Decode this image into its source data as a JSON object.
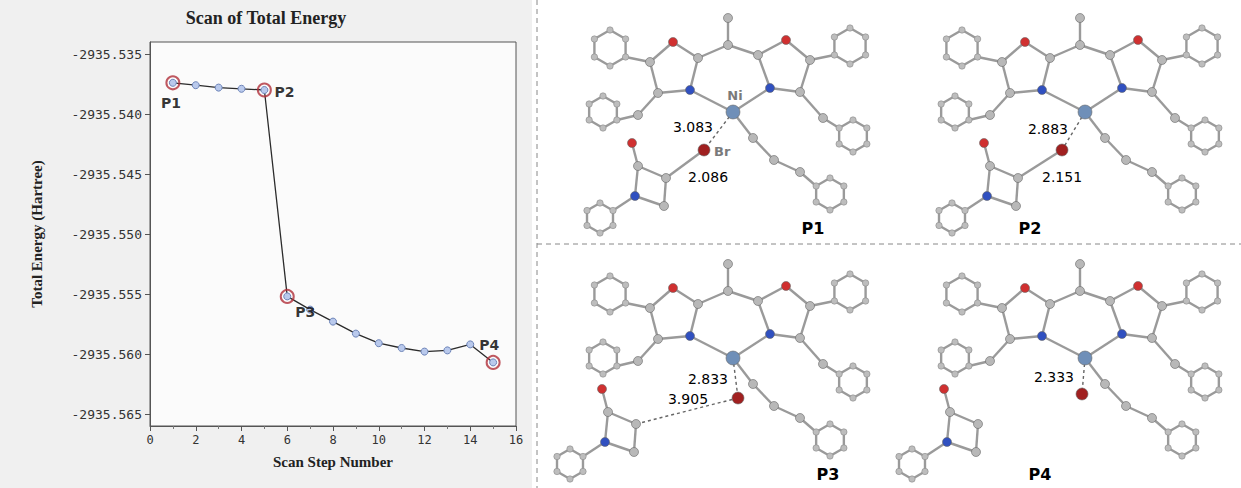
{
  "chart_data": {
    "type": "line",
    "title": "Scan of Total Energy",
    "x_label": "Scan Step Number",
    "y_label": "Total Energy (Hartree)",
    "x": [
      1,
      2,
      3,
      4,
      5,
      6,
      7,
      8,
      9,
      10,
      11,
      12,
      13,
      14,
      15
    ],
    "series": [
      {
        "name": "Total Energy",
        "color": "#2b2b2b",
        "marker": "circle",
        "line_style": "solid",
        "values": [
          -2935.5374,
          -2935.5376,
          -2935.5378,
          -2935.5379,
          -2935.538,
          -2935.5552,
          -2935.5563,
          -2935.5573,
          -2935.5583,
          -2935.5591,
          -2935.5595,
          -2935.5598,
          -2935.5597,
          -2935.5592,
          -2935.5607
        ]
      }
    ],
    "xlim": [
      0,
      16
    ],
    "xticks": [
      0,
      2,
      4,
      6,
      8,
      10,
      12,
      14,
      16
    ],
    "ylim": [
      -2935.566,
      -2935.534
    ],
    "yticks": [
      -2935.535,
      {
        "value": -2935.54,
        "label": "-2935.540"
      },
      -2935.545,
      {
        "value": -2935.55,
        "label": "-2935.550"
      },
      -2935.555,
      {
        "value": -2935.56,
        "label": "-2935.560"
      },
      -2935.565
    ],
    "grid": false,
    "annotations": [
      {
        "text": "P1",
        "index": 0
      },
      {
        "text": "P2",
        "index": 4
      },
      {
        "text": "P3",
        "index": 5
      },
      {
        "text": "P4",
        "index": 14
      }
    ]
  },
  "structures": [
    {
      "label": "P1",
      "atom_labels": [
        "Ni",
        "Br"
      ],
      "distances": [
        3.083,
        2.086
      ]
    },
    {
      "label": "P2",
      "atom_labels": [],
      "distances": [
        2.883,
        2.151
      ]
    },
    {
      "label": "P3",
      "atom_labels": [],
      "distances": [
        3.905,
        2.833
      ]
    },
    {
      "label": "P4",
      "atom_labels": [],
      "distances": [
        2.333
      ]
    }
  ]
}
